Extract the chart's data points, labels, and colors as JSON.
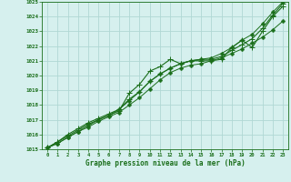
{
  "xlabel": "Graphe pression niveau de la mer (hPa)",
  "ylim": [
    1015,
    1025
  ],
  "xlim": [
    0,
    23
  ],
  "yticks": [
    1015,
    1016,
    1017,
    1018,
    1019,
    1020,
    1021,
    1022,
    1023,
    1024,
    1025
  ],
  "xticks": [
    0,
    1,
    2,
    3,
    4,
    5,
    6,
    7,
    8,
    9,
    10,
    11,
    12,
    13,
    14,
    15,
    16,
    17,
    18,
    19,
    20,
    21,
    22,
    23
  ],
  "bg_color": "#d6f0ee",
  "grid_color": "#b0d8d4",
  "line_color": "#1a6e1a",
  "series": [
    [
      1015.1,
      1015.4,
      1015.8,
      1016.2,
      1016.5,
      1016.9,
      1017.2,
      1017.5,
      1018.0,
      1018.5,
      1019.1,
      1019.7,
      1020.2,
      1020.5,
      1020.7,
      1020.8,
      1021.0,
      1021.2,
      1021.5,
      1021.8,
      1022.2,
      1022.6,
      1023.1,
      1023.7
    ],
    [
      1015.1,
      1015.5,
      1015.9,
      1016.3,
      1016.7,
      1017.0,
      1017.3,
      1017.6,
      1018.8,
      1019.4,
      1020.3,
      1020.6,
      1021.1,
      1020.8,
      1021.0,
      1021.0,
      1021.0,
      1021.1,
      1021.9,
      1022.4,
      1021.9,
      1023.0,
      1024.0,
      1024.7
    ],
    [
      1015.1,
      1015.5,
      1016.0,
      1016.4,
      1016.8,
      1017.1,
      1017.4,
      1017.7,
      1018.4,
      1018.9,
      1019.6,
      1020.1,
      1020.5,
      1020.8,
      1021.0,
      1021.1,
      1021.1,
      1021.3,
      1021.7,
      1022.1,
      1022.5,
      1023.2,
      1024.1,
      1024.9
    ],
    [
      1015.1,
      1015.4,
      1015.8,
      1016.2,
      1016.6,
      1017.0,
      1017.3,
      1017.7,
      1018.3,
      1018.9,
      1019.6,
      1020.1,
      1020.5,
      1020.8,
      1021.0,
      1021.1,
      1021.2,
      1021.5,
      1021.9,
      1022.4,
      1022.8,
      1023.5,
      1024.3,
      1025.0
    ]
  ]
}
